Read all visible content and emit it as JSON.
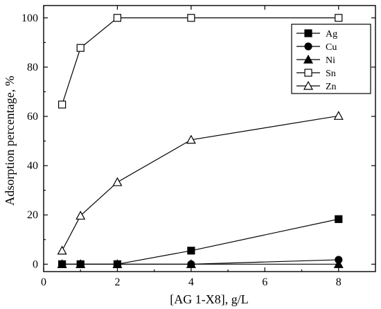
{
  "chart_data": {
    "type": "line",
    "xlabel": "[AG 1-X8], g/L",
    "ylabel": "Adsorption percentage, %",
    "xlim": [
      0,
      9
    ],
    "ylim": [
      -3,
      105
    ],
    "xticks": [
      0,
      2,
      4,
      6,
      8
    ],
    "yticks": [
      0,
      20,
      40,
      60,
      80,
      100
    ],
    "grid": false,
    "legend_position": "top-right",
    "x": [
      0.5,
      1,
      2,
      4,
      8
    ],
    "series": [
      {
        "name": "Ag",
        "marker": "square-filled",
        "values": [
          0,
          0,
          0,
          5.5,
          18.3
        ]
      },
      {
        "name": "Cu",
        "marker": "circle-filled",
        "values": [
          0,
          0,
          0,
          0,
          1.8
        ]
      },
      {
        "name": "Ni",
        "marker": "triangle-filled",
        "values": [
          0,
          0,
          0,
          0,
          0
        ]
      },
      {
        "name": "Sn",
        "marker": "square-open",
        "values": [
          64.8,
          87.8,
          100,
          100,
          100
        ]
      },
      {
        "name": "Zn",
        "marker": "triangle-open",
        "values": [
          5.5,
          19.7,
          33.3,
          50.5,
          60.2
        ]
      }
    ]
  }
}
